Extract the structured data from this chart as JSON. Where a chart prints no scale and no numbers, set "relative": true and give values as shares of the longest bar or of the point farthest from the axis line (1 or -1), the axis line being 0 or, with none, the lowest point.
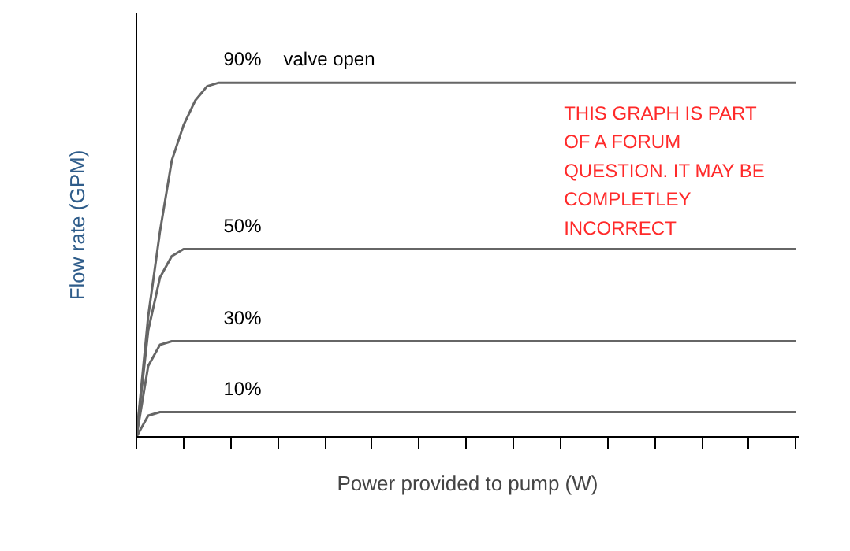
{
  "chart_data": {
    "type": "line",
    "relative": true,
    "xlabel": "Power provided to pump (W)",
    "ylabel": "Flow rate (GPM)",
    "categories": [
      null,
      null,
      null,
      null,
      null,
      null,
      null,
      null,
      null,
      null,
      null,
      null,
      null,
      null,
      null,
      null,
      null,
      null,
      null,
      null,
      null,
      null,
      null,
      null,
      null,
      null,
      null,
      null,
      null,
      null,
      null,
      null,
      null,
      null,
      null,
      null,
      null,
      null,
      null,
      null,
      null,
      null,
      null,
      null,
      null,
      null,
      null,
      null,
      null,
      null,
      null,
      null,
      null,
      null,
      null,
      null,
      null
    ],
    "series": [
      {
        "name": "90%",
        "color": "#666666",
        "values": [
          0,
          0.34,
          0.58,
          0.78,
          0.88,
          0.95,
          0.99,
          1,
          1,
          1,
          1,
          1,
          1,
          1,
          1,
          1,
          1,
          1,
          1,
          1,
          1,
          1,
          1,
          1,
          1,
          1,
          1,
          1,
          1,
          1,
          1,
          1,
          1,
          1,
          1,
          1,
          1,
          1,
          1,
          1,
          1,
          1,
          1,
          1,
          1,
          1,
          1,
          1,
          1,
          1,
          1,
          1,
          1,
          1,
          1,
          1,
          1
        ]
      },
      {
        "name": "50%",
        "color": "#666666",
        "values": [
          0,
          0.3,
          0.45,
          0.51,
          0.53,
          0.53,
          0.53,
          0.53,
          0.53,
          0.53,
          0.53,
          0.53,
          0.53,
          0.53,
          0.53,
          0.53,
          0.53,
          0.53,
          0.53,
          0.53,
          0.53,
          0.53,
          0.53,
          0.53,
          0.53,
          0.53,
          0.53,
          0.53,
          0.53,
          0.53,
          0.53,
          0.53,
          0.53,
          0.53,
          0.53,
          0.53,
          0.53,
          0.53,
          0.53,
          0.53,
          0.53,
          0.53,
          0.53,
          0.53,
          0.53,
          0.53,
          0.53,
          0.53,
          0.53,
          0.53,
          0.53,
          0.53,
          0.53,
          0.53,
          0.53,
          0.53,
          0.53
        ]
      },
      {
        "name": "30%",
        "color": "#666666",
        "values": [
          0,
          0.2,
          0.26,
          0.27,
          0.27,
          0.27,
          0.27,
          0.27,
          0.27,
          0.27,
          0.27,
          0.27,
          0.27,
          0.27,
          0.27,
          0.27,
          0.27,
          0.27,
          0.27,
          0.27,
          0.27,
          0.27,
          0.27,
          0.27,
          0.27,
          0.27,
          0.27,
          0.27,
          0.27,
          0.27,
          0.27,
          0.27,
          0.27,
          0.27,
          0.27,
          0.27,
          0.27,
          0.27,
          0.27,
          0.27,
          0.27,
          0.27,
          0.27,
          0.27,
          0.27,
          0.27,
          0.27,
          0.27,
          0.27,
          0.27,
          0.27,
          0.27,
          0.27,
          0.27,
          0.27,
          0.27,
          0.27
        ]
      },
      {
        "name": "10%",
        "color": "#666666",
        "values": [
          0,
          0.06,
          0.07,
          0.07,
          0.07,
          0.07,
          0.07,
          0.07,
          0.07,
          0.07,
          0.07,
          0.07,
          0.07,
          0.07,
          0.07,
          0.07,
          0.07,
          0.07,
          0.07,
          0.07,
          0.07,
          0.07,
          0.07,
          0.07,
          0.07,
          0.07,
          0.07,
          0.07,
          0.07,
          0.07,
          0.07,
          0.07,
          0.07,
          0.07,
          0.07,
          0.07,
          0.07,
          0.07,
          0.07,
          0.07,
          0.07,
          0.07,
          0.07,
          0.07,
          0.07,
          0.07,
          0.07,
          0.07,
          0.07,
          0.07,
          0.07,
          0.07,
          0.07,
          0.07,
          0.07,
          0.07,
          0.07
        ]
      }
    ],
    "annotations": [
      "valve open",
      "THIS GRAPH IS PART\nOF A FORUM\nQUESTION. IT MAY BE\nCOMPLETLEY\nINCORRECT"
    ]
  }
}
